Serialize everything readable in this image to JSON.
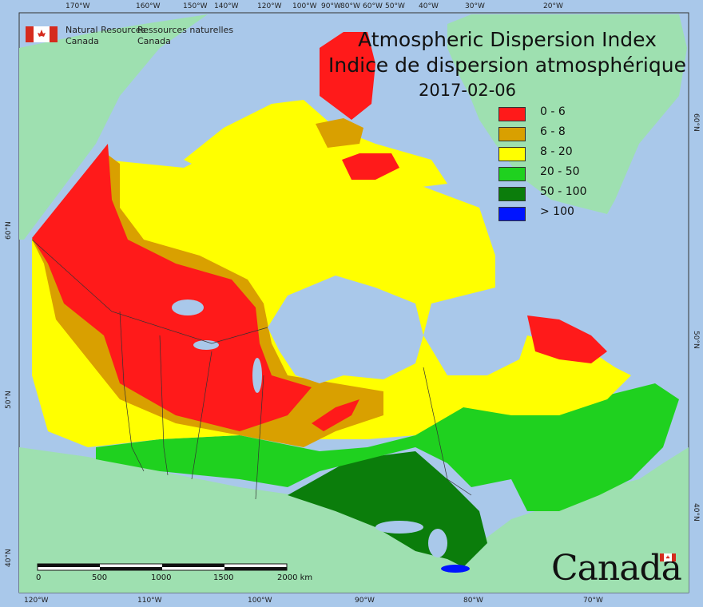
{
  "header": {
    "agency_en_line1": "Natural Resources",
    "agency_en_line2": "Canada",
    "agency_fr_line1": "Ressources naturelles",
    "agency_fr_line2": "Canada"
  },
  "title": {
    "en": "Atmospheric Dispersion Index",
    "fr": "Indice de dispersion atmosphérique",
    "date": "2017-02-06"
  },
  "legend": {
    "items": [
      {
        "label": "0 - 6",
        "color": "#ff1a1a"
      },
      {
        "label": "6 - 8",
        "color": "#d9a000"
      },
      {
        "label": "8 - 20",
        "color": "#ffff00"
      },
      {
        "label": "20 - 50",
        "color": "#1fd11f"
      },
      {
        "label": "50 - 100",
        "color": "#0b7d0b"
      },
      {
        "label": "> 100",
        "color": "#0014ff"
      }
    ]
  },
  "map_colors": {
    "ocean": "#a9c8ea",
    "foreign_land": "#9ee0b0",
    "boundary": "#333333",
    "lakes": "#a9c8ea"
  },
  "top_axis": [
    "170°W",
    "160°W",
    "150°W",
    "140°W",
    "120°W",
    "100°W",
    "90°W",
    "80°W",
    "60°W",
    "50°W",
    "40°W",
    "30°W",
    "20°W"
  ],
  "bottom_axis": [
    "120°W",
    "110°W",
    "100°W",
    "90°W",
    "80°W",
    "70°W"
  ],
  "left_axis": [
    "60°N",
    "50°N",
    "40°N"
  ],
  "right_axis": [
    "60°N",
    "50°N",
    "40°N"
  ],
  "scale_bar": {
    "ticks": [
      "0",
      "500",
      "1000",
      "1500",
      "2000 km"
    ]
  },
  "wordmark": "Canada"
}
